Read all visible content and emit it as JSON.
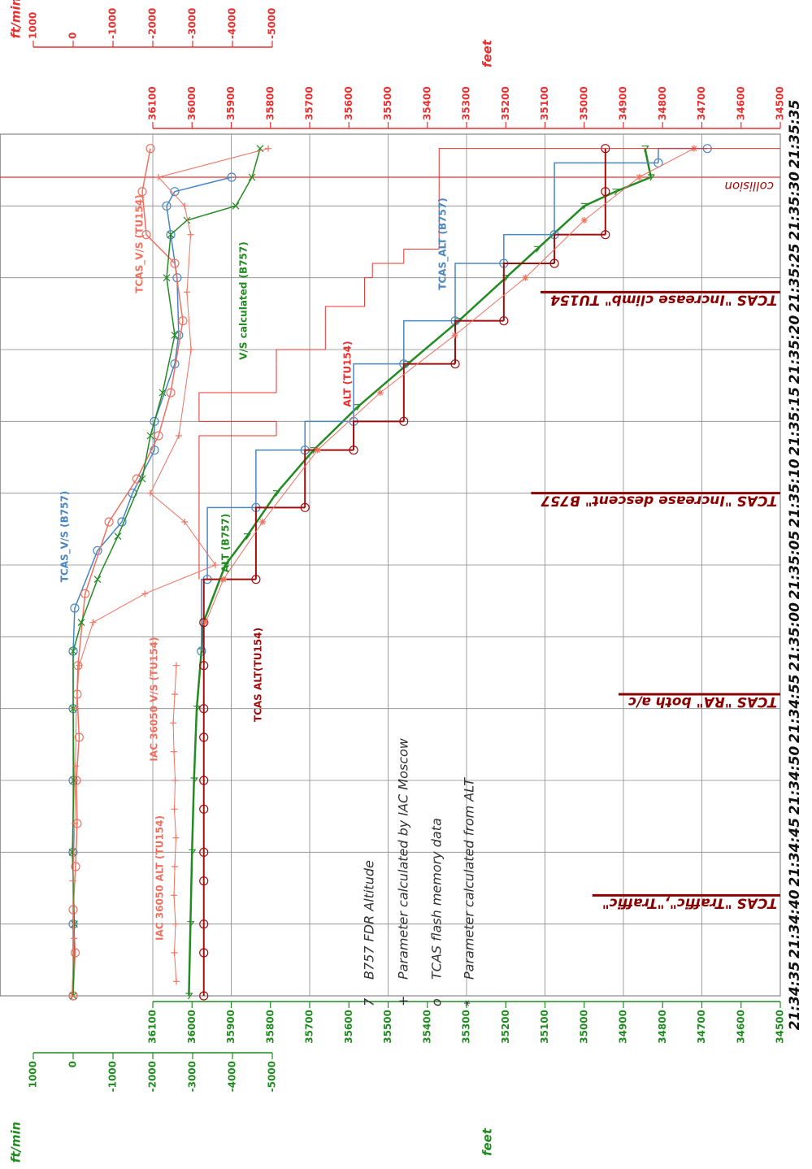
{
  "chart_data": {
    "type": "line",
    "orientation": "time-vertical",
    "xlim": [
      "21:34:35",
      "21:35:35"
    ],
    "xticks": [
      "21:34:35",
      "21:34:40",
      "21:34:45",
      "21:34:50",
      "21:34:55",
      "21:35:00",
      "21:35:05",
      "21:35:10",
      "21:35:15",
      "21:35:20",
      "21:35:25",
      "21:35:30",
      "21:35:35"
    ],
    "ylim": [
      36100,
      34500
    ],
    "yticks": [
      36100,
      36000,
      35900,
      35800,
      35700,
      35600,
      35500,
      35400,
      35300,
      35200,
      35100,
      35000,
      34900,
      34800,
      34700,
      34600,
      34500
    ],
    "y2lim": [
      1000,
      -5000
    ],
    "y2ticks": [
      1000,
      0,
      -1000,
      -2000,
      -3000,
      -4000,
      -5000
    ],
    "grid": true,
    "axis_titles": {
      "top_vs": "ft/min",
      "top_alt": "feet",
      "bottom_vs": "ft/min",
      "bottom_alt": "feet"
    },
    "axis_colors": {
      "top": "#e83030",
      "bottom": "#228b22"
    },
    "series": [
      {
        "name": "ALT (B757)",
        "color": "#228b22",
        "marker": "tri",
        "width": 2.5,
        "x": [
          "21:34:35",
          "21:34:40",
          "21:34:45",
          "21:34:50",
          "21:34:55",
          "21:34:59",
          "21:35:01",
          "21:35:05",
          "21:35:07",
          "21:35:10",
          "21:35:13",
          "21:35:16",
          "21:35:19",
          "21:35:22",
          "21:35:25",
          "21:35:27",
          "21:35:30",
          "21:35:31",
          "21:35:32",
          "21:35:34"
        ],
        "values": [
          36008,
          36004,
          36000,
          35995,
          35988,
          35976,
          35971,
          35915,
          35860,
          35785,
          35690,
          35578,
          35450,
          35320,
          35200,
          35120,
          35000,
          34920,
          34830,
          34845
        ]
      },
      {
        "name": "TCAS_ALT (B757)",
        "color": "#4a86c0",
        "marker": "circle",
        "width": 1.5,
        "step": true,
        "x": [
          "21:34:59",
          "21:35:04",
          "21:35:09",
          "21:35:13",
          "21:35:15",
          "21:35:19",
          "21:35:22",
          "21:35:26",
          "21:35:28",
          "21:35:33",
          "21:35:34"
        ],
        "values": [
          35976,
          35961,
          35837,
          35712,
          35588,
          35460,
          35329,
          35205,
          35076,
          34811,
          34686
        ]
      },
      {
        "name": "TCAS ALT(TU154)",
        "color": "#a00d0d",
        "marker": "circle",
        "width": 2,
        "step": true,
        "x": [
          "21:34:35",
          "21:34:38",
          "21:34:40",
          "21:34:43",
          "21:34:45",
          "21:34:48",
          "21:34:50",
          "21:34:53",
          "21:34:55",
          "21:34:58",
          "21:35:01",
          "21:35:04",
          "21:35:09",
          "21:35:13",
          "21:35:15",
          "21:35:19",
          "21:35:22",
          "21:35:26",
          "21:35:28",
          "21:35:31",
          "21:35:34"
        ],
        "values": [
          35970,
          35970,
          35970,
          35970,
          35970,
          35970,
          35970,
          35970,
          35970,
          35970,
          35970,
          35837,
          35712,
          35588,
          35460,
          35329,
          35205,
          35076,
          34946,
          34946,
          34946
        ]
      },
      {
        "color": "#f07060",
        "marker": "star",
        "width": 1,
        "x": [
          "21:35:01",
          "21:35:04",
          "21:35:08",
          "21:35:13",
          "21:35:17",
          "21:35:21",
          "21:35:25",
          "21:35:29",
          "21:35:32",
          "21:35:34"
        ],
        "values": [
          35965,
          35920,
          35820,
          35680,
          35520,
          35330,
          35150,
          35000,
          34860,
          34720
        ]
      },
      {
        "name": "IAC 36050 ALT (TU154)",
        "color": "#f07060",
        "marker": "plus",
        "width": 1,
        "x": [
          "21:34:36",
          "21:34:38",
          "21:34:40",
          "21:34:42",
          "21:34:44",
          "21:34:46",
          "21:34:48",
          "21:34:50",
          "21:34:52",
          "21:34:54",
          "21:34:56",
          "21:34:58"
        ],
        "values": [
          36040,
          36045,
          36042,
          36046,
          36044,
          36041,
          36045,
          36043,
          36046,
          36048,
          36044,
          36040
        ]
      },
      {
        "name": "ALT (TU154)",
        "color": "#e83030",
        "marker": "none",
        "width": 1,
        "step": true,
        "x": [
          "21:35:04",
          "21:35:13",
          "21:35:14",
          "21:35:15",
          "21:35:16",
          "21:35:17",
          "21:35:19",
          "21:35:20",
          "21:35:22",
          "21:35:23",
          "21:35:25",
          "21:35:26",
          "21:35:27",
          "21:35:31",
          "21:35:34"
        ],
        "values": [
          35982,
          35982,
          35785,
          35982,
          35982,
          35785,
          35785,
          35660,
          35660,
          35560,
          35540,
          35460,
          35370,
          35370,
          34500
        ]
      },
      {
        "name": "TCAS_V/S (B757)",
        "color": "#4a86c0",
        "marker": "circle",
        "width": 1.5,
        "axis": "y2",
        "x": [
          "21:34:35",
          "21:34:40",
          "21:34:45",
          "21:34:50",
          "21:34:55",
          "21:34:59",
          "21:35:02",
          "21:35:06",
          "21:35:08",
          "21:35:10",
          "21:35:13",
          "21:35:15",
          "21:35:19",
          "21:35:21",
          "21:35:25",
          "21:35:28",
          "21:35:30",
          "21:35:31",
          "21:35:32"
        ],
        "values": [
          0,
          0,
          0,
          0,
          0,
          0,
          -40,
          -612,
          -1224,
          -1490,
          -2041,
          -2041,
          -2551,
          -2650,
          -2610,
          -2450,
          -2347,
          -2550,
          -3980
        ]
      },
      {
        "name": "TCAS_V/S (TU154)",
        "color": "#f07060",
        "marker": "circle",
        "width": 1.5,
        "axis": "y2",
        "x": [
          "21:34:35",
          "21:34:38",
          "21:34:41",
          "21:34:44",
          "21:34:47",
          "21:34:50",
          "21:34:53",
          "21:34:56",
          "21:34:58",
          "21:35:03",
          "21:35:08",
          "21:35:11",
          "21:35:14",
          "21:35:17",
          "21:35:22",
          "21:35:26",
          "21:35:28",
          "21:35:31",
          "21:35:34"
        ],
        "values": [
          0,
          -50,
          0,
          -60,
          -100,
          -80,
          -150,
          -100,
          -120,
          -300,
          -900,
          -1600,
          -2143,
          -2449,
          -2755,
          -2551,
          -1837,
          -1735,
          -1939
        ]
      },
      {
        "name": "V/S calculated (B757)",
        "color": "#228b22",
        "marker": "x",
        "width": 1.5,
        "axis": "y2",
        "x": [
          "21:34:35",
          "21:34:40",
          "21:34:45",
          "21:34:50",
          "21:34:55",
          "21:34:59",
          "21:35:01",
          "21:35:04",
          "21:35:07",
          "21:35:11",
          "21:35:14",
          "21:35:17",
          "21:35:21",
          "21:35:25",
          "21:35:28",
          "21:35:29",
          "21:35:30",
          "21:35:32",
          "21:35:34"
        ],
        "values": [
          0,
          -30,
          20,
          -20,
          0,
          0,
          -204,
          -612,
          -1122,
          -1735,
          -1939,
          -2245,
          -2551,
          -2347,
          -2449,
          -2857,
          -4082,
          -4490,
          -4694
        ]
      },
      {
        "name": "IAC 36050 V/S (TU154)",
        "color": "#f07060",
        "marker": "plus",
        "width": 1,
        "axis": "y2",
        "x": [
          "21:34:35",
          "21:34:39",
          "21:34:43",
          "21:34:47",
          "21:34:51",
          "21:34:55",
          "21:34:58",
          "21:35:01",
          "21:35:03",
          "21:35:05",
          "21:35:08",
          "21:35:10",
          "21:35:14",
          "21:35:20",
          "21:35:24",
          "21:35:28",
          "21:35:30",
          "21:35:32",
          "21:35:34"
        ],
        "values": [
          30,
          -20,
          10,
          -40,
          -60,
          -80,
          -150,
          -500,
          -1800,
          -3571,
          -2800,
          -1939,
          -2653,
          -2959,
          -2857,
          -2950,
          -2800,
          -2143,
          -4898
        ]
      }
    ],
    "legend_notes": [
      {
        "symbol": "7",
        "text": "B757 FDR Altitude"
      },
      {
        "symbol": "+",
        "text": "Parameter calculated by IAC Moscow"
      },
      {
        "symbol": "o",
        "text": "TCAS flash memory data"
      },
      {
        "symbol": "*",
        "text": "Parameter calculated from ALT"
      }
    ],
    "events": [
      {
        "time": "21:34:42",
        "label": "TCAS \"Traffic\",\"Traffic\""
      },
      {
        "time": "21:34:56",
        "label": "TCAS \"RA\" both a/c"
      },
      {
        "time": "21:35:10",
        "label": "TCAS \"Increase descent\" B757"
      },
      {
        "time": "21:35:24",
        "label": "TCAS \"Increase climb\" TU154"
      }
    ],
    "collision": {
      "time": "21:35:32",
      "label": "collision"
    }
  }
}
